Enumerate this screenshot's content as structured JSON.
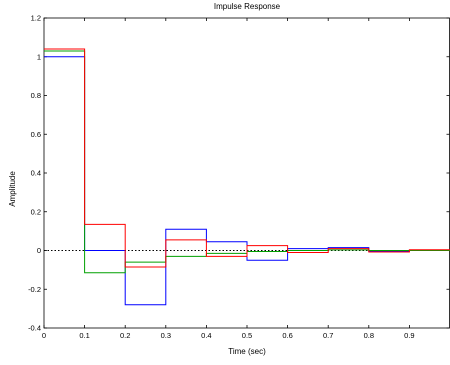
{
  "chart_data": {
    "type": "line",
    "step": true,
    "title": "Impulse Response",
    "xlabel": "Time (sec)",
    "ylabel": "Amplitude",
    "xlim": [
      0,
      1
    ],
    "ylim": [
      -0.4,
      1.2
    ],
    "xticks": [
      0,
      0.1,
      0.2,
      0.3,
      0.4,
      0.5,
      0.6,
      0.7,
      0.8,
      0.9
    ],
    "xtick_labels": [
      "0",
      "0.1",
      "0.2",
      "0.3",
      "0.4",
      "0.5",
      "0.6",
      "0.7",
      "0.8",
      "0.9"
    ],
    "yticks": [
      -0.4,
      -0.2,
      0,
      0.2,
      0.4,
      0.6,
      0.8,
      1,
      1.2
    ],
    "ytick_labels": [
      "-0.4",
      "-0.2",
      "0",
      "0.2",
      "0.4",
      "0.6",
      "0.8",
      "1",
      "1.2"
    ],
    "grid": false,
    "zero_reference_line": true,
    "x": [
      0,
      0.1,
      0.2,
      0.3,
      0.4,
      0.5,
      0.6,
      0.7,
      0.8,
      0.9
    ],
    "series": [
      {
        "color": "#0000ff",
        "values": [
          1.0,
          0.0,
          -0.28,
          0.11,
          0.045,
          -0.05,
          0.01,
          0.015,
          -0.005,
          0.002
        ]
      },
      {
        "color": "#00a000",
        "values": [
          1.03,
          -0.115,
          -0.06,
          -0.03,
          -0.015,
          -0.005,
          0.0,
          0.003,
          0.0,
          0.0
        ]
      },
      {
        "color": "#ff0000",
        "values": [
          1.04,
          0.135,
          -0.085,
          0.055,
          -0.03,
          0.025,
          -0.01,
          0.01,
          -0.008,
          0.004
        ]
      }
    ]
  }
}
